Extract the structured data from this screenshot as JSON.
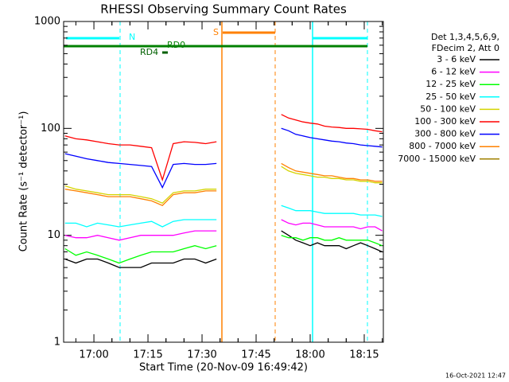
{
  "chart_data": {
    "type": "line",
    "title": "RHESSI Observing Summary Count Rates",
    "x_label": "Start Time (20-Nov-09 16:49:42)",
    "y_label": "Count Rate (s⁻¹ detector⁻¹)",
    "legend_title": [
      "Det 1,3,4,5,6,9,",
      "FDecim 2, Att 0"
    ],
    "legend": "right",
    "flag_labels": [
      "N",
      "S",
      "RD0",
      "RD4"
    ],
    "footer": "16-Oct-2021 12:47",
    "ylog": true,
    "ylim": [
      1,
      1000
    ],
    "yticks": [
      1,
      10,
      100,
      1000
    ],
    "xlim": [
      1011.6,
      1100.3
    ],
    "xticks": [
      {
        "value": 1020,
        "label": "17:00"
      },
      {
        "value": 1035,
        "label": "17:15"
      },
      {
        "value": 1050,
        "label": "17:30"
      },
      {
        "value": 1065,
        "label": "17:45"
      },
      {
        "value": 1080,
        "label": "18:00"
      },
      {
        "value": 1095,
        "label": "18:15"
      }
    ],
    "x": [
      1012,
      1015,
      1018,
      1021,
      1024,
      1027,
      1030,
      1033,
      1036,
      1039,
      1042,
      1045,
      1048,
      1051,
      1054,
      1063,
      1072,
      1074,
      1076,
      1078,
      1080,
      1082,
      1084,
      1086,
      1088,
      1090,
      1092,
      1094,
      1096,
      1098,
      1100
    ],
    "series": [
      {
        "name": "3 - 6 keV",
        "color": "#000000",
        "values": [
          6,
          5.5,
          6,
          6,
          5.5,
          5,
          5,
          5,
          5.5,
          5.5,
          5.5,
          6,
          6,
          5.5,
          6,
          null,
          11,
          10,
          9,
          8.5,
          8,
          8.5,
          8,
          8,
          8,
          7.5,
          8,
          8.5,
          8,
          7.5,
          7
        ]
      },
      {
        "name": "6 - 12 keV",
        "color": "#ff00ff",
        "values": [
          10,
          9.5,
          9.5,
          10,
          9.5,
          9,
          9.5,
          10,
          10,
          10,
          10,
          10.5,
          11,
          11,
          11,
          null,
          14,
          13,
          12.5,
          13,
          13,
          12.5,
          12,
          12,
          12,
          12,
          12,
          11.5,
          12,
          12,
          11
        ]
      },
      {
        "name": "12 - 25 keV",
        "color": "#00ff00",
        "values": [
          7.5,
          6.5,
          7,
          6.5,
          6,
          5.5,
          6,
          6.5,
          7,
          7,
          7,
          7.5,
          8,
          7.5,
          8,
          null,
          10,
          9.5,
          9.5,
          9,
          9.5,
          9.5,
          9,
          9,
          9.5,
          9,
          9,
          9,
          9,
          8.5,
          8
        ]
      },
      {
        "name": "25 - 50 keV",
        "color": "#00ffff",
        "values": [
          13,
          13,
          12,
          13,
          12.5,
          12,
          12.5,
          13,
          13.5,
          12,
          13.5,
          14,
          14,
          14,
          14,
          null,
          19,
          18,
          17,
          17,
          17,
          16.5,
          16,
          16,
          16,
          16,
          16,
          15.5,
          15.5,
          15.5,
          15
        ]
      },
      {
        "name": "50 - 100 keV",
        "color": "#d4d400",
        "values": [
          29,
          27,
          26,
          25,
          24,
          24,
          24,
          23,
          22,
          20,
          25,
          26,
          26,
          27,
          27,
          null,
          44,
          40,
          38,
          37,
          36,
          35,
          35,
          34,
          34,
          33,
          33,
          32,
          32,
          31,
          31
        ]
      },
      {
        "name": "100 - 300 keV",
        "color": "#ff0000",
        "values": [
          85,
          80,
          78,
          75,
          72,
          70,
          70,
          68,
          66,
          33,
          72,
          75,
          74,
          72,
          75,
          null,
          135,
          125,
          120,
          115,
          112,
          110,
          105,
          103,
          102,
          100,
          100,
          99,
          98,
          95,
          93
        ]
      },
      {
        "name": "300 - 800 keV",
        "color": "#0000ff",
        "values": [
          58,
          55,
          52,
          50,
          48,
          47,
          46,
          45,
          44,
          28,
          46,
          47,
          46,
          46,
          47,
          null,
          100,
          95,
          88,
          85,
          82,
          80,
          78,
          76,
          75,
          73,
          72,
          70,
          69,
          68,
          67
        ]
      },
      {
        "name": "800 - 7000 keV",
        "color": "#ff8000",
        "values": [
          27,
          26,
          25,
          24,
          23,
          23,
          23,
          22,
          21,
          19,
          24,
          25,
          25,
          26,
          26,
          null,
          47,
          43,
          40,
          39,
          38,
          37,
          36,
          36,
          35,
          34,
          34,
          33,
          33,
          32,
          32
        ]
      },
      {
        "name": "7000 - 15000 keV",
        "color": "#a08000",
        "values": [
          null,
          null,
          null,
          null,
          null,
          null,
          null,
          null,
          null,
          null,
          null,
          null,
          null,
          null,
          null,
          null,
          null,
          null,
          null,
          null,
          null,
          null,
          null,
          null,
          null,
          null,
          null,
          null,
          null,
          null,
          null
        ]
      }
    ]
  }
}
